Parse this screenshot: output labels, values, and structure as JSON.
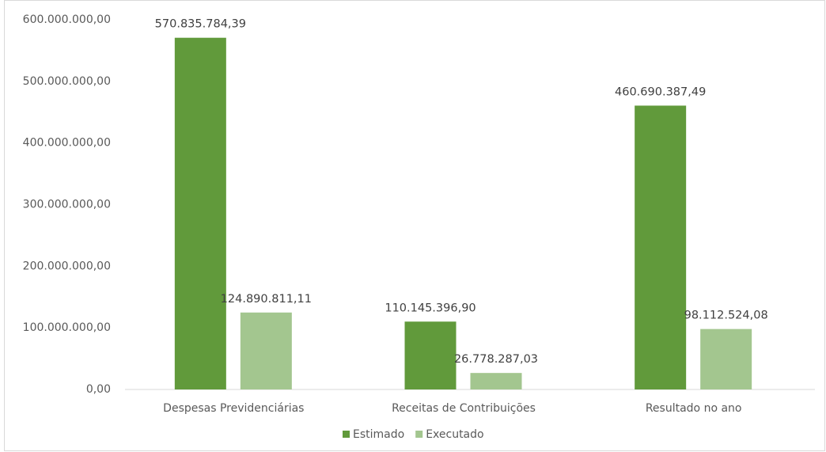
{
  "chart_data": {
    "type": "bar",
    "categories": [
      "Despesas Previdenciárias",
      "Receitas de Contribuições",
      "Resultado no ano"
    ],
    "series": [
      {
        "name": "Estimado",
        "color": "#619a3b",
        "values": [
          570835784.39,
          110145396.9,
          460690387.49
        ],
        "value_labels": [
          "570.835.784,39",
          "110.145.396,90",
          "460.690.387,49"
        ]
      },
      {
        "name": "Executado",
        "color": "#a3c68f",
        "values": [
          124890811.11,
          26778287.03,
          98112524.08
        ],
        "value_labels": [
          "124.890.811,11",
          "26.778.287,03",
          "98.112.524,08"
        ]
      }
    ],
    "ylim": [
      0,
      600000000
    ],
    "yticks": [
      {
        "value": 0,
        "label": "0,00"
      },
      {
        "value": 100000000,
        "label": "100.000.000,00"
      },
      {
        "value": 200000000,
        "label": "200.000.000,00"
      },
      {
        "value": 300000000,
        "label": "300.000.000,00"
      },
      {
        "value": 400000000,
        "label": "400.000.000,00"
      },
      {
        "value": 500000000,
        "label": "500.000.000,00"
      },
      {
        "value": 600000000,
        "label": "600.000.000,00"
      }
    ],
    "legend": "bottom"
  }
}
